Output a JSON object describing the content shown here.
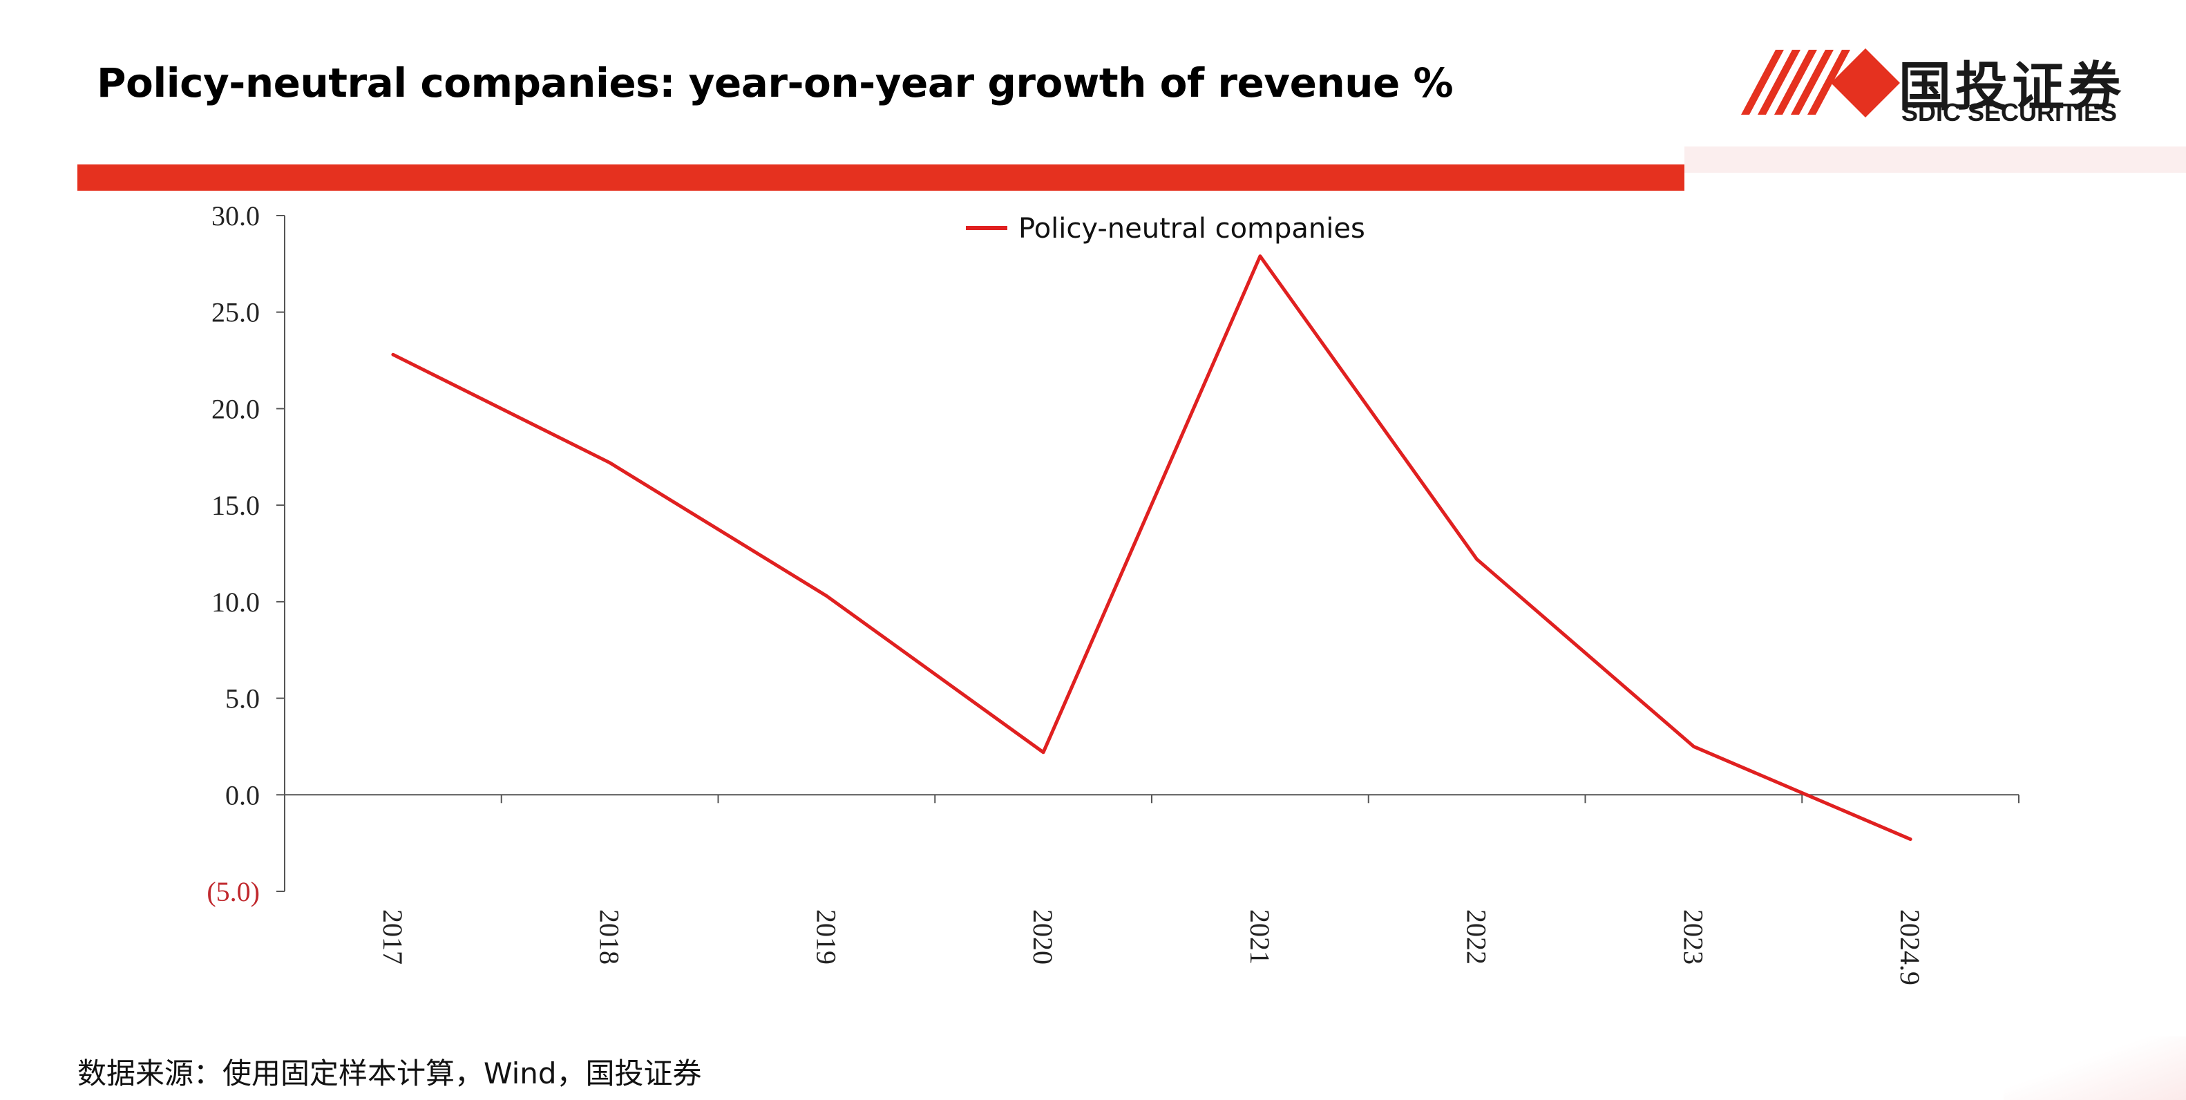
{
  "header": {
    "title": "Policy-neutral companies: year-on-year growth of revenue %",
    "logo_cn": "国投证券",
    "logo_en": "SDIC SECURITIES"
  },
  "colors": {
    "accent": "#e5311f",
    "series": "#e02020",
    "negative_tick": "#c0282d"
  },
  "chart_data": {
    "type": "line",
    "title": "",
    "xlabel": "",
    "ylabel": "",
    "categories": [
      "2017",
      "2018",
      "2019",
      "2020",
      "2021",
      "2022",
      "2023",
      "2024.9"
    ],
    "series": [
      {
        "name": "Policy-neutral companies",
        "values": [
          22.8,
          17.2,
          10.3,
          2.2,
          27.9,
          12.2,
          2.5,
          -2.3
        ]
      }
    ],
    "ylim": [
      -5,
      30
    ],
    "yticks": [
      30,
      25,
      20,
      15,
      10,
      5,
      0,
      -5
    ],
    "ytick_labels": [
      "30.0",
      "25.0",
      "20.0",
      "15.0",
      "10.0",
      "5.0",
      "0.0",
      "(5.0)"
    ],
    "legend_position": "top-center",
    "grid": false
  },
  "footer": {
    "source": "数据来源：使用固定样本计算，Wind，国投证券"
  }
}
